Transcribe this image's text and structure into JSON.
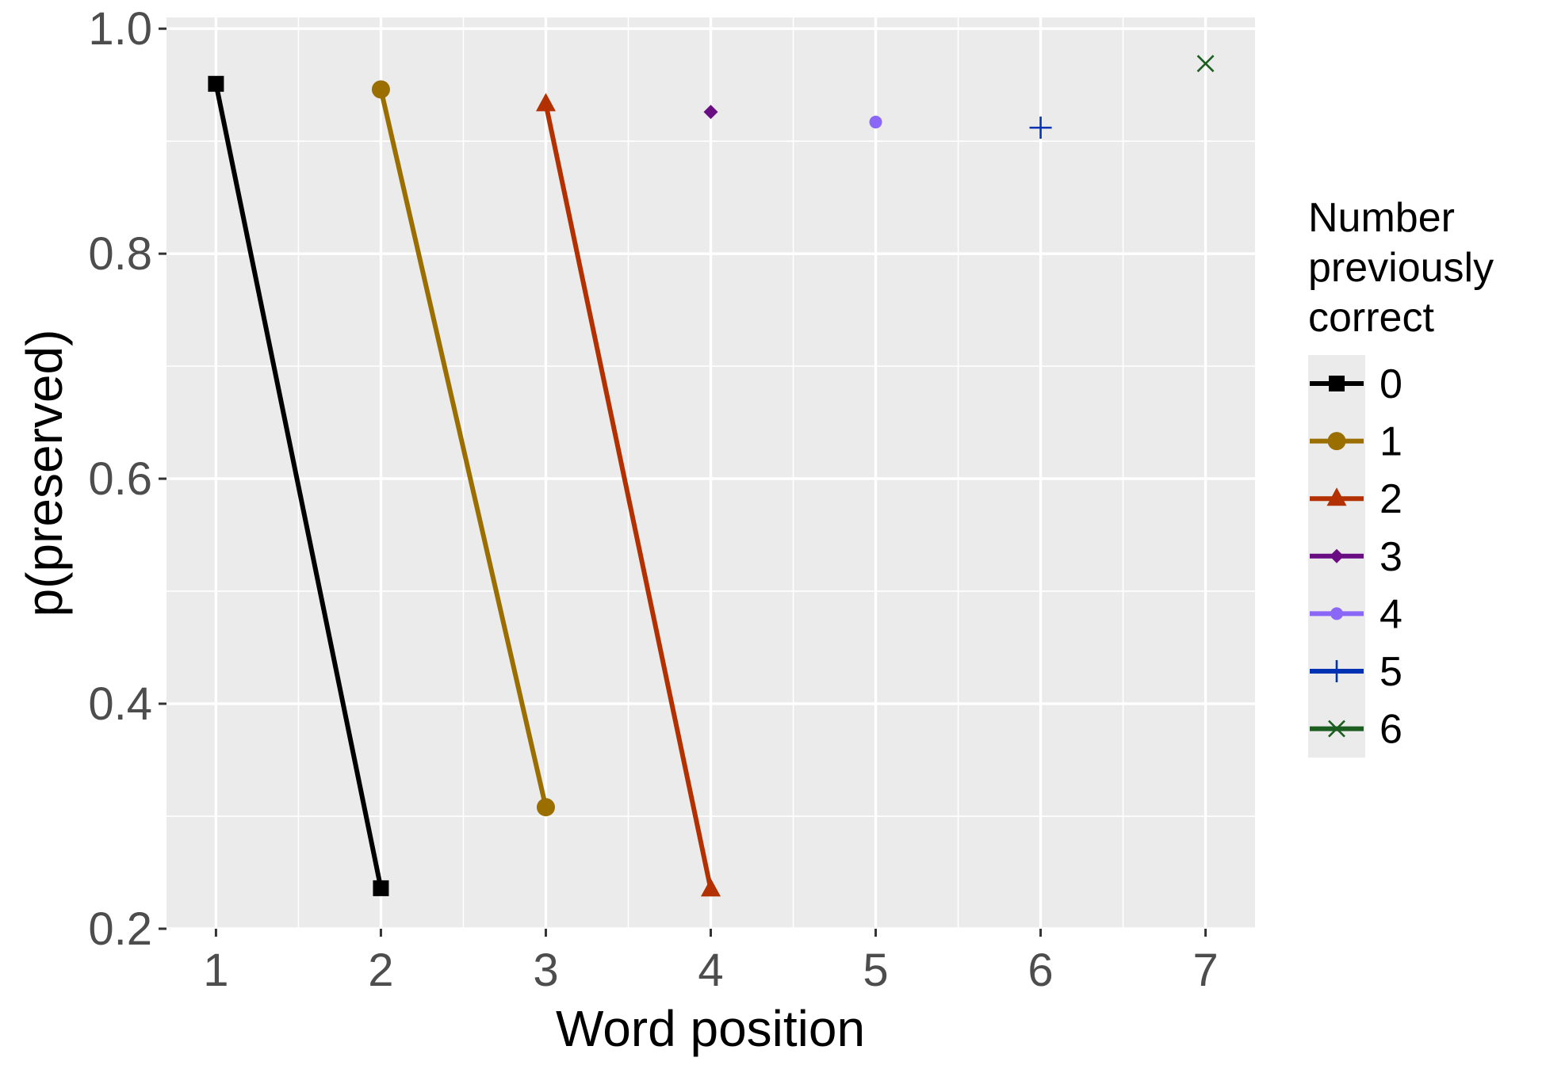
{
  "chart_data": {
    "type": "line",
    "xlabel": "Word position",
    "ylabel": "p(preserved)",
    "x_ticks": [
      "1",
      "2",
      "3",
      "4",
      "5",
      "6",
      "7"
    ],
    "y_ticks": [
      "0.2",
      "0.4",
      "0.6",
      "0.8",
      "1.0"
    ],
    "xlim": [
      0.7,
      7.3
    ],
    "ylim": [
      0.2,
      1.01
    ],
    "grid": true,
    "legend": {
      "title_lines": [
        "Number",
        "previously",
        "correct"
      ],
      "position": "right"
    },
    "series": [
      {
        "name": "0",
        "color": "#000000",
        "shape": "square",
        "x": [
          1,
          2
        ],
        "y": [
          0.951,
          0.236
        ]
      },
      {
        "name": "1",
        "color": "#9b6e00",
        "shape": "circle",
        "x": [
          2,
          3
        ],
        "y": [
          0.946,
          0.308
        ]
      },
      {
        "name": "2",
        "color": "#b33000",
        "shape": "triangle",
        "x": [
          3,
          4
        ],
        "y": [
          0.933,
          0.235
        ]
      },
      {
        "name": "3",
        "color": "#6a0d83",
        "shape": "diamond",
        "x": [
          4
        ],
        "y": [
          0.926
        ]
      },
      {
        "name": "4",
        "color": "#8b67f7",
        "shape": "dot",
        "x": [
          5
        ],
        "y": [
          0.917
        ]
      },
      {
        "name": "5",
        "color": "#0033b3",
        "shape": "plus",
        "x": [
          6
        ],
        "y": [
          0.912
        ]
      },
      {
        "name": "6",
        "color": "#1b5e20",
        "shape": "cross",
        "x": [
          7
        ],
        "y": [
          0.969
        ]
      }
    ]
  }
}
